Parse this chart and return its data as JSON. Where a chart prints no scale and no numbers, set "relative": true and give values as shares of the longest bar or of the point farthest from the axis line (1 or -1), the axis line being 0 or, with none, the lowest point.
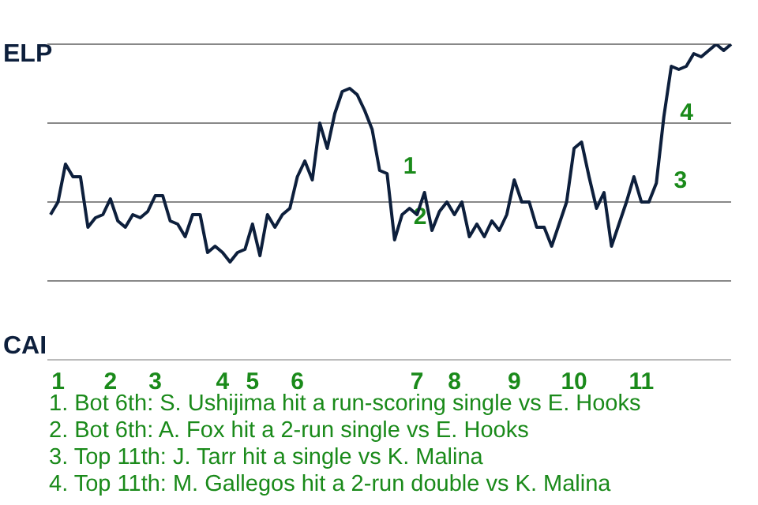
{
  "chart_data": {
    "type": "line",
    "relative": true,
    "categories": [
      null,
      "1",
      null,
      null,
      null,
      null,
      null,
      null,
      "2",
      null,
      null,
      null,
      null,
      null,
      "3",
      null,
      null,
      null,
      null,
      null,
      null,
      null,
      null,
      "4",
      null,
      null,
      null,
      "5",
      null,
      null,
      null,
      null,
      null,
      "6",
      null,
      null,
      null,
      null,
      null,
      null,
      null,
      null,
      null,
      null,
      null,
      null,
      null,
      null,
      null,
      "7",
      null,
      null,
      null,
      null,
      "8",
      null,
      null,
      null,
      null,
      null,
      null,
      null,
      "9",
      null,
      null,
      null,
      null,
      null,
      null,
      null,
      "10",
      null,
      null,
      null,
      null,
      null,
      null,
      null,
      null,
      "11",
      null,
      null,
      null,
      null,
      null,
      null,
      null,
      null,
      null,
      null,
      null,
      null
    ],
    "series": [
      {
        "color": "#0d1f3c",
        "values": [
          0.46,
          0.5,
          0.62,
          0.58,
          0.58,
          0.42,
          0.45,
          0.46,
          0.51,
          0.44,
          0.42,
          0.46,
          0.45,
          0.47,
          0.52,
          0.52,
          0.44,
          0.43,
          0.39,
          0.46,
          0.46,
          0.34,
          0.36,
          0.34,
          0.31,
          0.34,
          0.35,
          0.43,
          0.33,
          0.46,
          0.42,
          0.46,
          0.48,
          0.58,
          0.63,
          0.57,
          0.75,
          0.67,
          0.78,
          0.85,
          0.86,
          0.84,
          0.79,
          0.73,
          0.6,
          0.59,
          0.38,
          0.46,
          0.48,
          0.46,
          0.53,
          0.41,
          0.47,
          0.5,
          0.46,
          0.5,
          0.39,
          0.43,
          0.39,
          0.44,
          0.41,
          0.46,
          0.57,
          0.5,
          0.5,
          0.42,
          0.42,
          0.36,
          0.43,
          0.5,
          0.67,
          0.69,
          0.58,
          0.48,
          0.53,
          0.36,
          0.43,
          0.5,
          0.58,
          0.5,
          0.5,
          0.56,
          0.77,
          0.93,
          0.92,
          0.93,
          0.97,
          0.96,
          0.98,
          1.0,
          0.98,
          1.0
        ]
      }
    ],
    "ref_lines": [
      {
        "axis": "y",
        "value": 0.25,
        "color": "#888888"
      },
      {
        "axis": "y",
        "value": 0.5,
        "color": "#888888"
      },
      {
        "axis": "y",
        "value": 0.75,
        "color": "#888888"
      },
      {
        "axis": "y",
        "value": 1,
        "color": "#888888"
      }
    ],
    "legend": false,
    "marker": "none",
    "line_style": "solid",
    "annotations": [
      "ELP",
      "CAI",
      "1",
      "2",
      "3",
      "4",
      "1. Bot 6th: S. Ushijima hit a run-scoring single vs E. Hooks",
      "2. Bot 6th: A. Fox hit a 2-run single vs E. Hooks",
      "3. Top 11th: J. Tarr hit a single vs K. Malina",
      "4. Top 11th: M. Gallegos hit a 2-run double vs K. Malina"
    ]
  }
}
